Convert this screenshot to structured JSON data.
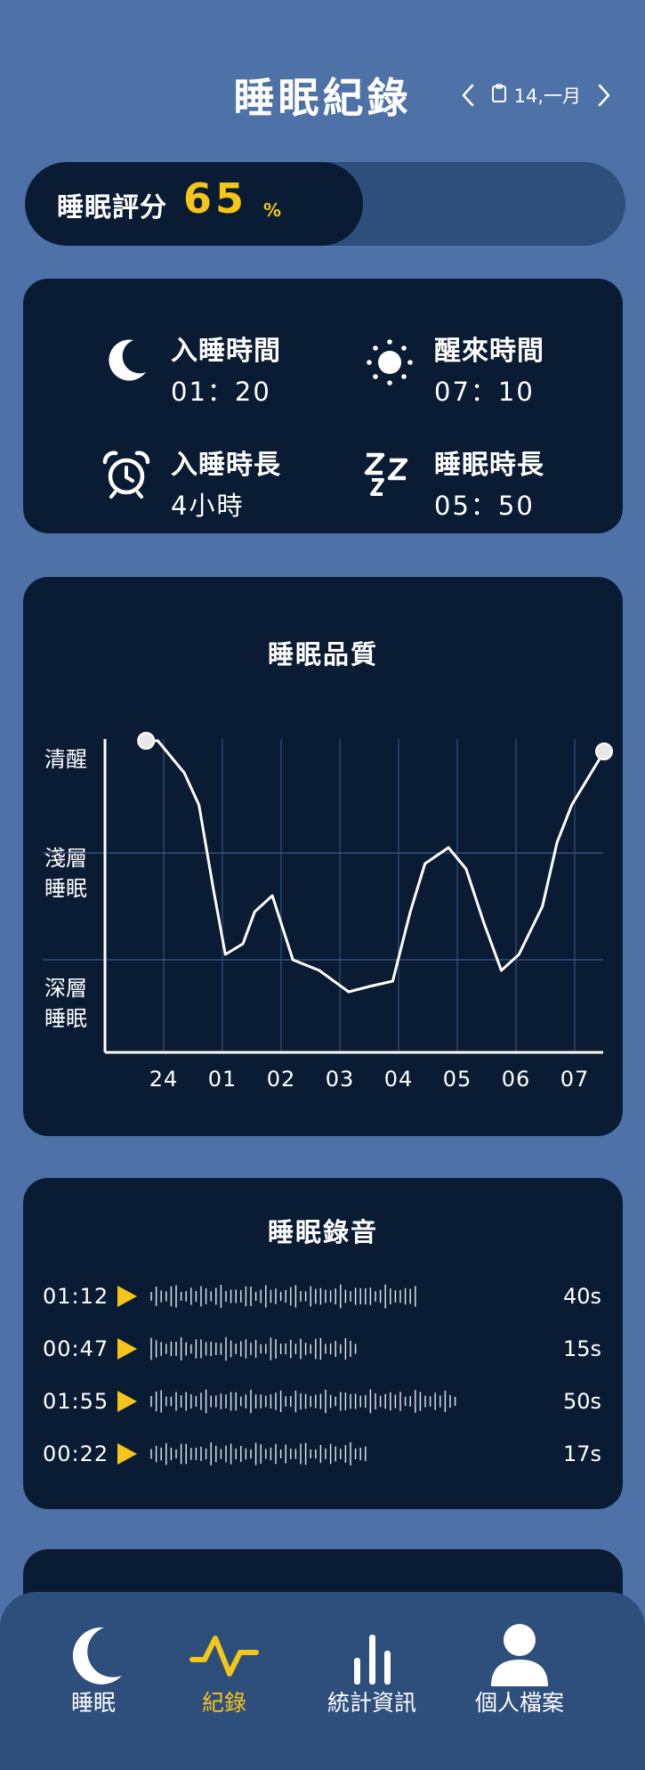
{
  "header": {
    "title": "睡眠紀錄",
    "date": "14,一月"
  },
  "score": {
    "label": "睡眠評分",
    "value": "65",
    "unit": "%",
    "fraction": 0.65
  },
  "info": {
    "sleep_time": {
      "label": "入睡時間",
      "value": "01：20",
      "icon": "moon-icon"
    },
    "wake_time": {
      "label": "醒來時間",
      "value": "07：10",
      "icon": "sun-icon"
    },
    "fall_asleep_duration": {
      "label": "入睡時長",
      "value": "4小時",
      "icon": "alarm-clock-icon"
    },
    "sleep_duration": {
      "label": "睡眠時長",
      "value": "05：50",
      "icon": "zzz-icon"
    }
  },
  "quality": {
    "title": "睡眠品質",
    "levels": [
      {
        "label": "清醒"
      },
      {
        "label": "淺層\n睡眠"
      },
      {
        "label": "深層\n睡眠"
      }
    ]
  },
  "chart_data": {
    "type": "line",
    "title": "睡眠品質",
    "x_ticks": [
      "24",
      "01",
      "02",
      "03",
      "04",
      "05",
      "06",
      "07"
    ],
    "y_categories": [
      "深層睡眠",
      "淺層睡眠",
      "清醒"
    ],
    "ylim": [
      0,
      3
    ],
    "grid": true,
    "series": [
      {
        "x": [
          -0.3,
          -0.1,
          0.35,
          0.6,
          0.85,
          1.05,
          1.35,
          1.55,
          1.85,
          2.2,
          2.65,
          3.15,
          3.5,
          3.9,
          4.2,
          4.45,
          4.85,
          5.15,
          5.45,
          5.75,
          6.05,
          6.45,
          6.7,
          6.95,
          7.5
        ],
        "y": [
          2.9,
          2.9,
          2.6,
          2.3,
          1.5,
          0.9,
          1.0,
          1.3,
          1.45,
          0.85,
          0.75,
          0.55,
          0.6,
          0.65,
          1.3,
          1.75,
          1.9,
          1.7,
          1.2,
          0.75,
          0.9,
          1.35,
          1.95,
          2.3,
          2.8
        ]
      }
    ]
  },
  "recordings": {
    "title": "睡眠錄音",
    "items": [
      {
        "time": "01:12",
        "duration": "40s",
        "wave_fraction": 0.65
      },
      {
        "time": "00:47",
        "duration": "15s",
        "wave_fraction": 0.51
      },
      {
        "time": "01:55",
        "duration": "50s",
        "wave_fraction": 0.74
      },
      {
        "time": "00:22",
        "duration": "17s",
        "wave_fraction": 0.53
      }
    ]
  },
  "tabs": [
    {
      "label": "睡眠",
      "icon": "moon-icon",
      "active": false
    },
    {
      "label": "紀錄",
      "icon": "pulse-icon",
      "active": true
    },
    {
      "label": "統計資訊",
      "icon": "bar-chart-icon",
      "active": false
    },
    {
      "label": "個人檔案",
      "icon": "person-icon",
      "active": false
    }
  ],
  "colors": {
    "background": "#4e71a8",
    "card": "#0a1c33",
    "accent": "#f5c518",
    "track": "#2e4e7c"
  }
}
